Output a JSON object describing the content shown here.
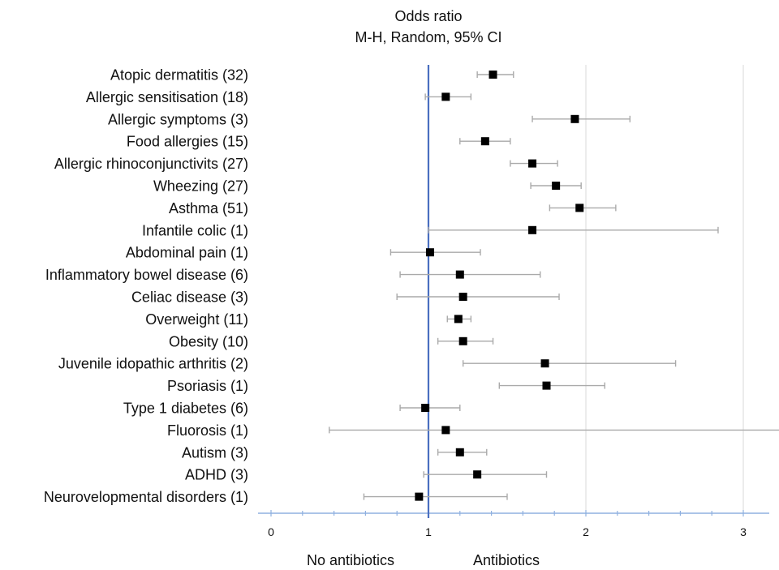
{
  "chart_data": {
    "type": "forest",
    "title": "Odds ratio",
    "subtitle": "M-H, Random, 95% CI",
    "xlim": [
      0,
      3.1
    ],
    "xticks": [
      0,
      1,
      2,
      3
    ],
    "reference_line": 1,
    "grid_x": true,
    "bottom_labels": {
      "left": "No antibiotics",
      "right": "Antibiotics"
    },
    "rows": [
      {
        "label": "Atopic dermatitis (32)",
        "or": 1.41,
        "lo": 1.31,
        "hi": 1.54
      },
      {
        "label": "Allergic sensitisation (18)",
        "or": 1.11,
        "lo": 0.98,
        "hi": 1.27
      },
      {
        "label": "Allergic symptoms  (3)",
        "or": 1.93,
        "lo": 1.66,
        "hi": 2.28
      },
      {
        "label": "Food allergies (15)",
        "or": 1.36,
        "lo": 1.2,
        "hi": 1.52
      },
      {
        "label": "Allergic rhinoconjunctivits (27)",
        "or": 1.66,
        "lo": 1.52,
        "hi": 1.82
      },
      {
        "label": "Wheezing (27)",
        "or": 1.81,
        "lo": 1.65,
        "hi": 1.97
      },
      {
        "label": "Asthma (51)",
        "or": 1.96,
        "lo": 1.77,
        "hi": 2.19
      },
      {
        "label": "Infantile colic (1)",
        "or": 1.66,
        "lo": 1.0,
        "hi": 2.84
      },
      {
        "label": "Abdominal pain (1)",
        "or": 1.01,
        "lo": 0.76,
        "hi": 1.33
      },
      {
        "label": "Inflammatory bowel disease (6)",
        "or": 1.2,
        "lo": 0.82,
        "hi": 1.71
      },
      {
        "label": "Celiac disease (3)",
        "or": 1.22,
        "lo": 0.8,
        "hi": 1.83
      },
      {
        "label": "Overweight (11)",
        "or": 1.19,
        "lo": 1.12,
        "hi": 1.27
      },
      {
        "label": "Obesity (10)",
        "or": 1.22,
        "lo": 1.06,
        "hi": 1.41
      },
      {
        "label": "Juvenile idopathic arthritis (2)",
        "or": 1.74,
        "lo": 1.22,
        "hi": 2.57
      },
      {
        "label": "Psoriasis (1)",
        "or": 1.75,
        "lo": 1.45,
        "hi": 2.12
      },
      {
        "label": "Type 1 diabetes (6)",
        "or": 0.98,
        "lo": 0.82,
        "hi": 1.2
      },
      {
        "label": "Fluorosis (1)",
        "or": 1.11,
        "lo": 0.37,
        "hi": 3.3
      },
      {
        "label": "Autism (3)",
        "or": 1.2,
        "lo": 1.06,
        "hi": 1.37
      },
      {
        "label": "ADHD (3)",
        "or": 1.31,
        "lo": 0.97,
        "hi": 1.75
      },
      {
        "label": "Neurovelopmental disorders (1)",
        "or": 0.94,
        "lo": 0.59,
        "hi": 1.5
      }
    ],
    "colors": {
      "reference": "#4a6fc0",
      "axis": "#8fb0e0",
      "grid": "#d8d8d8",
      "ci": "#aaaaaa",
      "marker": "#000000"
    }
  }
}
